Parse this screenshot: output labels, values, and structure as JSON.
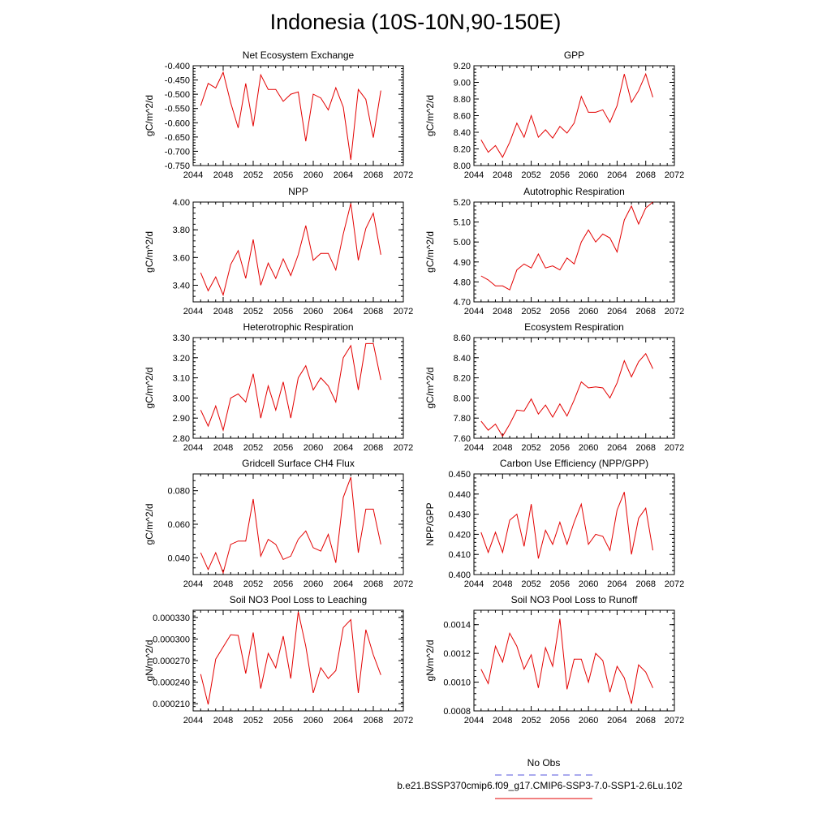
{
  "figure": {
    "title": "Indonesia (10S-10N,90-150E)",
    "legend": {
      "title": "No Obs",
      "entries": [
        {
          "label": "",
          "color": "#5555dd",
          "dash": "dashed"
        },
        {
          "label": "b.e21.BSSP370cmip6.f09_g17.CMIP6-SSP3-7.0-SSP1-2.6Lu.102",
          "color": "#e30000",
          "dash": "solid"
        }
      ]
    },
    "line_color": "#e30000"
  },
  "chart_data": [
    {
      "type": "line",
      "title": "Net Ecosystem Exchange",
      "ylabel": "gC/m^2/d",
      "xlim": [
        2044,
        2072
      ],
      "ylim": [
        -0.75,
        -0.4
      ],
      "xticks": [
        "2044",
        "2048",
        "2052",
        "2056",
        "2060",
        "2064",
        "2068",
        "2072"
      ],
      "yticks": [
        "-0.400",
        "-0.450",
        "-0.500",
        "-0.550",
        "-0.600",
        "-0.650",
        "-0.700",
        "-0.750"
      ],
      "x": [
        2045,
        2046,
        2047,
        2048,
        2049,
        2050,
        2051,
        2052,
        2053,
        2054,
        2055,
        2056,
        2057,
        2058,
        2059,
        2060,
        2061,
        2062,
        2063,
        2064,
        2065,
        2066,
        2067,
        2068,
        2069
      ],
      "values": [
        -0.54,
        -0.462,
        -0.478,
        -0.423,
        -0.53,
        -0.618,
        -0.462,
        -0.612,
        -0.432,
        -0.483,
        -0.483,
        -0.525,
        -0.5,
        -0.492,
        -0.665,
        -0.5,
        -0.513,
        -0.555,
        -0.477,
        -0.545,
        -0.73,
        -0.483,
        -0.518,
        -0.652,
        -0.487
      ]
    },
    {
      "type": "line",
      "title": "GPP",
      "ylabel": "gC/m^2/d",
      "xlim": [
        2044,
        2072
      ],
      "ylim": [
        8.0,
        9.2
      ],
      "xticks": [
        "2044",
        "2048",
        "2052",
        "2056",
        "2060",
        "2064",
        "2068",
        "2072"
      ],
      "yticks": [
        "9.20",
        "9.00",
        "8.80",
        "8.60",
        "8.40",
        "8.20",
        "8.00"
      ],
      "x": [
        2045,
        2046,
        2047,
        2048,
        2049,
        2050,
        2051,
        2052,
        2053,
        2054,
        2055,
        2056,
        2057,
        2058,
        2059,
        2060,
        2061,
        2062,
        2063,
        2064,
        2065,
        2066,
        2067,
        2068,
        2069
      ],
      "values": [
        8.31,
        8.16,
        8.24,
        8.1,
        8.28,
        8.51,
        8.34,
        8.6,
        8.34,
        8.43,
        8.33,
        8.47,
        8.39,
        8.51,
        8.83,
        8.64,
        8.64,
        8.67,
        8.52,
        8.72,
        9.1,
        8.76,
        8.9,
        9.1,
        8.82
      ]
    },
    {
      "type": "line",
      "title": "NPP",
      "ylabel": "gC/m^2/d",
      "xlim": [
        2044,
        2072
      ],
      "ylim": [
        3.28,
        4.0
      ],
      "xticks": [
        "2044",
        "2048",
        "2052",
        "2056",
        "2060",
        "2064",
        "2068",
        "2072"
      ],
      "yticks": [
        "4.00",
        "3.80",
        "3.60",
        "3.40"
      ],
      "x": [
        2045,
        2046,
        2047,
        2048,
        2049,
        2050,
        2051,
        2052,
        2053,
        2054,
        2055,
        2056,
        2057,
        2058,
        2059,
        2060,
        2061,
        2062,
        2063,
        2064,
        2065,
        2066,
        2067,
        2068,
        2069
      ],
      "values": [
        3.49,
        3.36,
        3.46,
        3.33,
        3.55,
        3.65,
        3.45,
        3.73,
        3.4,
        3.56,
        3.45,
        3.59,
        3.47,
        3.62,
        3.83,
        3.58,
        3.63,
        3.63,
        3.51,
        3.77,
        3.99,
        3.58,
        3.81,
        3.92,
        3.62
      ]
    },
    {
      "type": "line",
      "title": "Autotrophic Respiration",
      "ylabel": "gC/m^2/d",
      "xlim": [
        2044,
        2072
      ],
      "ylim": [
        4.7,
        5.2
      ],
      "xticks": [
        "2044",
        "2048",
        "2052",
        "2056",
        "2060",
        "2064",
        "2068",
        "2072"
      ],
      "yticks": [
        "5.20",
        "5.10",
        "5.00",
        "4.90",
        "4.80",
        "4.70"
      ],
      "x": [
        2045,
        2046,
        2047,
        2048,
        2049,
        2050,
        2051,
        2052,
        2053,
        2054,
        2055,
        2056,
        2057,
        2058,
        2059,
        2060,
        2061,
        2062,
        2063,
        2064,
        2065,
        2066,
        2067,
        2068,
        2069
      ],
      "values": [
        4.83,
        4.81,
        4.78,
        4.78,
        4.76,
        4.86,
        4.89,
        4.87,
        4.94,
        4.87,
        4.88,
        4.86,
        4.92,
        4.89,
        5.0,
        5.06,
        5.0,
        5.04,
        5.02,
        4.95,
        5.11,
        5.18,
        5.09,
        5.17,
        5.2
      ]
    },
    {
      "type": "line",
      "title": "Heterotrophic Respiration",
      "ylabel": "gC/m^2/d",
      "xlim": [
        2044,
        2072
      ],
      "ylim": [
        2.8,
        3.3
      ],
      "xticks": [
        "2044",
        "2048",
        "2052",
        "2056",
        "2060",
        "2064",
        "2068",
        "2072"
      ],
      "yticks": [
        "3.30",
        "3.20",
        "3.10",
        "3.00",
        "2.90",
        "2.80"
      ],
      "x": [
        2045,
        2046,
        2047,
        2048,
        2049,
        2050,
        2051,
        2052,
        2053,
        2054,
        2055,
        2056,
        2057,
        2058,
        2059,
        2060,
        2061,
        2062,
        2063,
        2064,
        2065,
        2066,
        2067,
        2068,
        2069
      ],
      "values": [
        2.94,
        2.86,
        2.96,
        2.84,
        3.0,
        3.02,
        2.98,
        3.12,
        2.9,
        3.06,
        2.94,
        3.08,
        2.9,
        3.1,
        3.16,
        3.04,
        3.1,
        3.06,
        2.98,
        3.2,
        3.26,
        3.04,
        3.27,
        3.27,
        3.09
      ]
    },
    {
      "type": "line",
      "title": "Ecosystem Respiration",
      "ylabel": "gC/m^2/d",
      "xlim": [
        2044,
        2072
      ],
      "ylim": [
        7.6,
        8.6
      ],
      "xticks": [
        "2044",
        "2048",
        "2052",
        "2056",
        "2060",
        "2064",
        "2068",
        "2072"
      ],
      "yticks": [
        "8.60",
        "8.40",
        "8.20",
        "8.00",
        "7.80",
        "7.60"
      ],
      "x": [
        2045,
        2046,
        2047,
        2048,
        2049,
        2050,
        2051,
        2052,
        2053,
        2054,
        2055,
        2056,
        2057,
        2058,
        2059,
        2060,
        2061,
        2062,
        2063,
        2064,
        2065,
        2066,
        2067,
        2068,
        2069
      ],
      "values": [
        7.77,
        7.68,
        7.74,
        7.62,
        7.74,
        7.88,
        7.87,
        7.99,
        7.84,
        7.93,
        7.81,
        7.94,
        7.82,
        7.98,
        8.16,
        8.1,
        8.11,
        8.1,
        8.0,
        8.15,
        8.37,
        8.21,
        8.36,
        8.44,
        8.29
      ]
    },
    {
      "type": "line",
      "title": "Gridcell Surface CH4 Flux",
      "ylabel": "gC/m^2/d",
      "xlim": [
        2044,
        2072
      ],
      "ylim": [
        0.03,
        0.09
      ],
      "xticks": [
        "2044",
        "2048",
        "2052",
        "2056",
        "2060",
        "2064",
        "2068",
        "2072"
      ],
      "yticks": [
        "0.080",
        "0.060",
        "0.040"
      ],
      "x": [
        2045,
        2046,
        2047,
        2048,
        2049,
        2050,
        2051,
        2052,
        2053,
        2054,
        2055,
        2056,
        2057,
        2058,
        2059,
        2060,
        2061,
        2062,
        2063,
        2064,
        2065,
        2066,
        2067,
        2068,
        2069
      ],
      "values": [
        0.043,
        0.033,
        0.043,
        0.031,
        0.048,
        0.05,
        0.05,
        0.075,
        0.041,
        0.051,
        0.048,
        0.039,
        0.041,
        0.051,
        0.056,
        0.046,
        0.044,
        0.054,
        0.037,
        0.076,
        0.088,
        0.043,
        0.069,
        0.069,
        0.048
      ]
    },
    {
      "type": "line",
      "title": "Carbon Use Efficiency (NPP/GPP)",
      "ylabel": "NPP/GPP",
      "xlim": [
        2044,
        2072
      ],
      "ylim": [
        0.4,
        0.45
      ],
      "xticks": [
        "2044",
        "2048",
        "2052",
        "2056",
        "2060",
        "2064",
        "2068",
        "2072"
      ],
      "yticks": [
        "0.450",
        "0.440",
        "0.430",
        "0.420",
        "0.410",
        "0.400"
      ],
      "x": [
        2045,
        2046,
        2047,
        2048,
        2049,
        2050,
        2051,
        2052,
        2053,
        2054,
        2055,
        2056,
        2057,
        2058,
        2059,
        2060,
        2061,
        2062,
        2063,
        2064,
        2065,
        2066,
        2067,
        2068,
        2069
      ],
      "values": [
        0.421,
        0.411,
        0.421,
        0.411,
        0.427,
        0.43,
        0.414,
        0.435,
        0.408,
        0.422,
        0.415,
        0.426,
        0.415,
        0.426,
        0.435,
        0.415,
        0.42,
        0.419,
        0.412,
        0.432,
        0.441,
        0.41,
        0.428,
        0.433,
        0.412
      ]
    },
    {
      "type": "line",
      "title": "Soil NO3 Pool Loss to Leaching",
      "ylabel": "gN/m^2/d",
      "xlim": [
        2044,
        2072
      ],
      "ylim": [
        0.0002,
        0.00034
      ],
      "xticks": [
        "2044",
        "2048",
        "2052",
        "2056",
        "2060",
        "2064",
        "2068",
        "2072"
      ],
      "yticks": [
        "0.000330",
        "0.000300",
        "0.000270",
        "0.000240",
        "0.000210"
      ],
      "x": [
        2045,
        2046,
        2047,
        2048,
        2049,
        2050,
        2051,
        2052,
        2053,
        2054,
        2055,
        2056,
        2057,
        2058,
        2059,
        2060,
        2061,
        2062,
        2063,
        2064,
        2065,
        2066,
        2067,
        2068,
        2069
      ],
      "values": [
        0.000251,
        0.000209,
        0.000272,
        0.000289,
        0.000306,
        0.000305,
        0.000252,
        0.000309,
        0.000231,
        0.00028,
        0.00026,
        0.000304,
        0.000245,
        0.000338,
        0.00029,
        0.000225,
        0.00026,
        0.000245,
        0.000256,
        0.000316,
        0.000327,
        0.000225,
        0.000313,
        0.000278,
        0.00025
      ]
    },
    {
      "type": "line",
      "title": "Soil NO3 Pool Loss to Runoff",
      "ylabel": "gN/m^2/d",
      "xlim": [
        2044,
        2072
      ],
      "ylim": [
        0.0008,
        0.0015
      ],
      "xticks": [
        "2044",
        "2048",
        "2052",
        "2056",
        "2060",
        "2064",
        "2068",
        "2072"
      ],
      "yticks": [
        "0.0014",
        "0.0012",
        "0.0010",
        "0.0008"
      ],
      "x": [
        2045,
        2046,
        2047,
        2048,
        2049,
        2050,
        2051,
        2052,
        2053,
        2054,
        2055,
        2056,
        2057,
        2058,
        2059,
        2060,
        2061,
        2062,
        2063,
        2064,
        2065,
        2066,
        2067,
        2068,
        2069
      ],
      "values": [
        0.00109,
        0.00099,
        0.00125,
        0.00114,
        0.00134,
        0.00125,
        0.00109,
        0.00119,
        0.00096,
        0.00124,
        0.00111,
        0.00144,
        0.00095,
        0.00116,
        0.00116,
        0.001,
        0.0012,
        0.00115,
        0.00093,
        0.00111,
        0.00103,
        0.00085,
        0.00112,
        0.00107,
        0.00096
      ]
    }
  ]
}
